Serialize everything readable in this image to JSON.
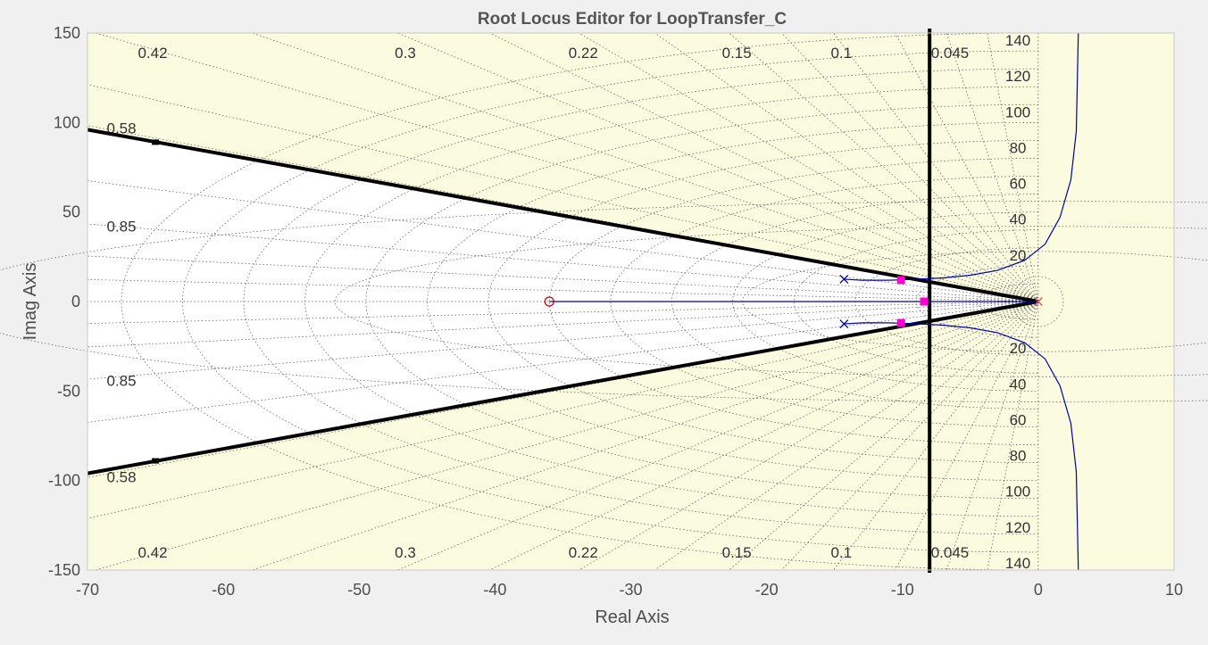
{
  "chart_data": {
    "type": "root-locus",
    "title": "Root Locus Editor for LoopTransfer_C",
    "xlabel": "Real Axis",
    "ylabel": "Imag Axis",
    "xlim": [
      -70,
      10
    ],
    "ylim": [
      -150,
      150
    ],
    "xticks": [
      -70,
      -60,
      -50,
      -40,
      -30,
      -20,
      -10,
      0,
      10
    ],
    "yticks": [
      -150,
      -100,
      -50,
      0,
      50,
      100,
      150
    ],
    "grid": "s-plane damping / natural-frequency grid (dotted)",
    "colors": {
      "plot_bg": "#fbfbe0",
      "allowed_region": "#ffffff",
      "locus": "#0000a8",
      "closed_loop_pole": "#ff00d0",
      "open_loop_zero": "#d40000",
      "origin_pole": "#e05050",
      "constraint": "#000000",
      "grid": "#555555"
    },
    "damping_labels": {
      "top": [
        {
          "value": "0.42",
          "x": -65.2
        },
        {
          "value": "0.3",
          "x": -46.6
        },
        {
          "value": "0.22",
          "x": -33.5
        },
        {
          "value": "0.15",
          "x": -22.2
        },
        {
          "value": "0.1",
          "x": -14.5
        },
        {
          "value": "0.045",
          "x": -6.5
        }
      ],
      "bottom": [
        {
          "value": "0.42",
          "x": -65.2
        },
        {
          "value": "0.3",
          "x": -46.6
        },
        {
          "value": "0.22",
          "x": -33.5
        },
        {
          "value": "0.15",
          "x": -22.2
        },
        {
          "value": "0.1",
          "x": -14.5
        },
        {
          "value": "0.045",
          "x": -6.5
        }
      ],
      "left": [
        {
          "value": "0.58",
          "y": 97
        },
        {
          "value": "0.85",
          "y": 42
        },
        {
          "value": "0.85",
          "y": -44
        },
        {
          "value": "0.58",
          "y": -98
        }
      ]
    },
    "frequency_labels": [
      {
        "value": "140",
        "y": 146
      },
      {
        "value": "120",
        "y": 126
      },
      {
        "value": "100",
        "y": 106
      },
      {
        "value": "80",
        "y": 86
      },
      {
        "value": "60",
        "y": 66
      },
      {
        "value": "40",
        "y": 46
      },
      {
        "value": "20",
        "y": 26
      },
      {
        "value": "20",
        "y": -26
      },
      {
        "value": "40",
        "y": -46
      },
      {
        "value": "60",
        "y": -66
      },
      {
        "value": "80",
        "y": -86
      },
      {
        "value": "100",
        "y": -106
      },
      {
        "value": "120",
        "y": -126
      },
      {
        "value": "140",
        "y": -146
      }
    ],
    "damping_cone_lines": [
      [
        [
          -70,
          96
        ],
        [
          0,
          0
        ]
      ],
      [
        [
          -70,
          -96
        ],
        [
          0,
          0
        ]
      ]
    ],
    "settling_constraint_x": -8,
    "open_loop_poles": [
      {
        "x": -14.3,
        "y": 12.5
      },
      {
        "x": -14.3,
        "y": -12.5
      },
      {
        "x": 0,
        "y": 0
      }
    ],
    "open_loop_zeros": [
      {
        "x": -36,
        "y": 0
      }
    ],
    "closed_loop_poles": [
      {
        "x": -10.1,
        "y": 12
      },
      {
        "x": -10.1,
        "y": -12
      },
      {
        "x": -8.4,
        "y": 0
      }
    ],
    "locus_branches": [
      [
        [
          -14.3,
          12.5
        ],
        [
          -13,
          11.9
        ],
        [
          -11,
          11.9
        ],
        [
          -9,
          12.4
        ],
        [
          -7,
          13.2
        ],
        [
          -5,
          14.7
        ],
        [
          -3,
          17.4
        ],
        [
          -1,
          23
        ],
        [
          0.5,
          32
        ],
        [
          1.6,
          47
        ],
        [
          2.4,
          68
        ],
        [
          2.8,
          95
        ],
        [
          2.95,
          150
        ]
      ],
      [
        [
          -14.3,
          -12.5
        ],
        [
          -13,
          -11.9
        ],
        [
          -11,
          -11.9
        ],
        [
          -9,
          -12.4
        ],
        [
          -7,
          -13.2
        ],
        [
          -5,
          -14.7
        ],
        [
          -3,
          -17.4
        ],
        [
          -1,
          -23
        ],
        [
          0.5,
          -32
        ],
        [
          1.6,
          -47
        ],
        [
          2.4,
          -68
        ],
        [
          2.8,
          -95
        ],
        [
          2.95,
          -150
        ]
      ],
      [
        [
          0,
          0
        ],
        [
          -36,
          0
        ]
      ]
    ]
  }
}
